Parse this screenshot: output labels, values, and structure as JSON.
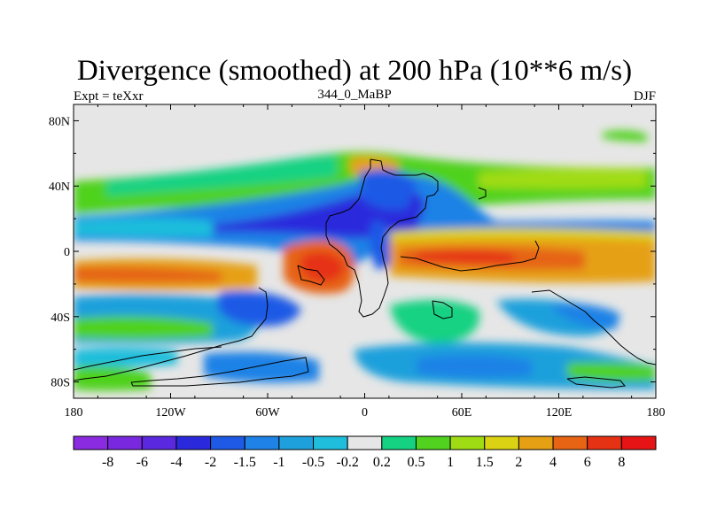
{
  "map": {
    "title": "Divergence (smoothed) at 200 hPa (10**6 m/s)",
    "left_label": "Expt = teXxr",
    "center_label": "344_0_MaBP",
    "right_label": "DJF",
    "lat_ticks": [
      "80N",
      "40N",
      "0",
      "40S",
      "80S"
    ],
    "lon_ticks": [
      "180",
      "120W",
      "60W",
      "0",
      "60E",
      "120E",
      "180"
    ]
  },
  "colorbar": {
    "labels": [
      "-8",
      "-6",
      "-4",
      "-2",
      "-1.5",
      "-1",
      "-0.5",
      "-0.2",
      "0.2",
      "0.5",
      "1",
      "1.5",
      "2",
      "4",
      "6",
      "8"
    ],
    "colors": [
      "#8a2be2",
      "#7a28e0",
      "#5a28de",
      "#2a2adc",
      "#1e5ae6",
      "#1e82e6",
      "#1ea0dc",
      "#1ebedc",
      "#e6e6e6",
      "#14d282",
      "#50d21e",
      "#a0dc14",
      "#dcd214",
      "#e6a014",
      "#e66414",
      "#e63214",
      "#e61414"
    ]
  }
}
